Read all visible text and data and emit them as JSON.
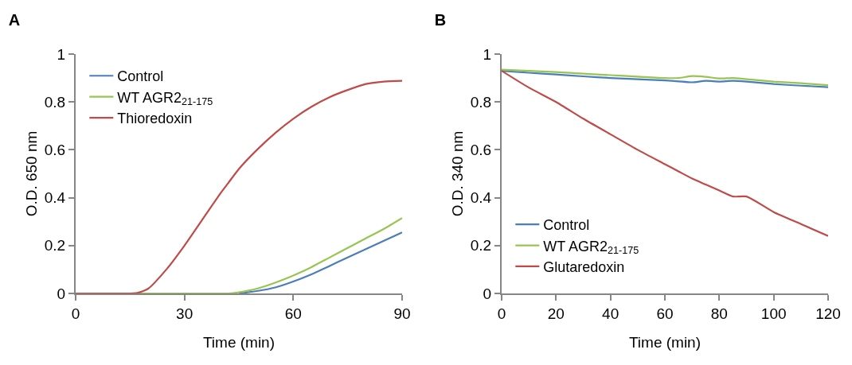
{
  "chart_data": [
    {
      "type": "line",
      "title": "A",
      "xlabel": "Time (min)",
      "ylabel": "O.D. 650 nm",
      "xlim": [
        0,
        90
      ],
      "xticks": [
        0,
        30,
        60,
        90
      ],
      "ylim": [
        0,
        1
      ],
      "yticks": [
        0,
        0.2,
        0.4,
        0.6,
        0.8,
        1
      ],
      "grid": false,
      "legend": "top left",
      "marker": "none",
      "line_style": "solid",
      "x": [
        0,
        5,
        10,
        15,
        17,
        20,
        25,
        30,
        35,
        40,
        42,
        45,
        50,
        55,
        60,
        65,
        70,
        75,
        80,
        85,
        90
      ],
      "series": [
        {
          "name": "Control",
          "color": "#4a7ebb",
          "values": [
            null,
            null,
            null,
            null,
            null,
            null,
            null,
            null,
            null,
            null,
            null,
            0,
            0.01,
            0.025,
            0.05,
            0.08,
            0.115,
            0.15,
            0.185,
            0.22,
            0.255
          ]
        },
        {
          "name": "WT AGR2$_{21-175}$",
          "color": "#98c552",
          "values": [
            null,
            null,
            null,
            0,
            0,
            0,
            0,
            0,
            0,
            0,
            0,
            0.005,
            0.02,
            0.045,
            0.075,
            0.11,
            0.15,
            0.19,
            0.23,
            0.27,
            0.315
          ]
        },
        {
          "name": "Thioredoxin",
          "color": "#be4b48",
          "values": [
            0,
            0,
            0,
            0,
            0.002,
            0.02,
            0.1,
            0.2,
            0.31,
            0.42,
            0.46,
            0.52,
            0.6,
            0.67,
            0.73,
            0.78,
            0.82,
            0.85,
            0.875,
            0.885,
            0.888
          ]
        }
      ]
    },
    {
      "type": "line",
      "title": "B",
      "xlabel": "Time (min)",
      "ylabel": "O.D. 340 nm",
      "xlim": [
        0,
        120
      ],
      "xticks": [
        0,
        20,
        40,
        60,
        80,
        100,
        120
      ],
      "ylim": [
        0,
        1
      ],
      "yticks": [
        0,
        0.2,
        0.4,
        0.6,
        0.8,
        1
      ],
      "grid": false,
      "legend": "bottom left",
      "marker": "none",
      "line_style": "solid",
      "x": [
        0,
        10,
        20,
        30,
        40,
        50,
        60,
        65,
        70,
        75,
        80,
        85,
        90,
        100,
        110,
        120
      ],
      "series": [
        {
          "name": "Control",
          "color": "#4a7ebb",
          "values": [
            0.93,
            0.922,
            0.915,
            0.907,
            0.9,
            0.895,
            0.89,
            0.886,
            0.882,
            0.888,
            0.885,
            0.888,
            0.885,
            0.875,
            0.868,
            0.862
          ]
        },
        {
          "name": "WT AGR2$_{21-175}$",
          "color": "#98c552",
          "values": [
            0.935,
            0.93,
            0.925,
            0.918,
            0.912,
            0.906,
            0.9,
            0.9,
            0.908,
            0.905,
            0.898,
            0.9,
            0.895,
            0.885,
            0.878,
            0.87
          ]
        },
        {
          "name": "Glutaredoxin",
          "color": "#be4b48",
          "values": [
            0.93,
            0.86,
            0.8,
            0.73,
            0.665,
            0.6,
            0.54,
            0.51,
            0.48,
            0.455,
            0.43,
            0.405,
            0.405,
            0.34,
            0.29,
            0.24
          ]
        }
      ]
    }
  ]
}
